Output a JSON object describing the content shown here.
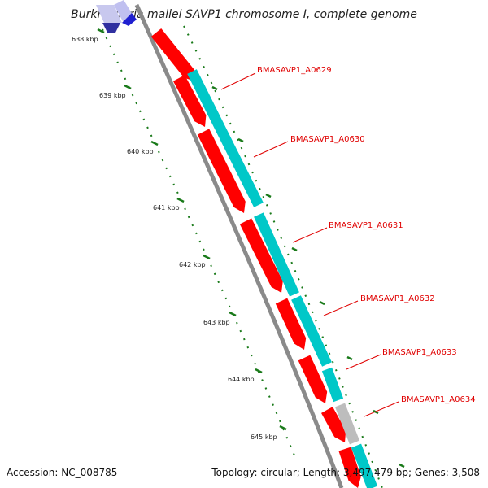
{
  "title": "Burkholderia mallei SAVP1 chromosome I, complete genome",
  "accession": "Accession: NC_008785",
  "summary": "Topology: circular; Length: 3,497,479 bp; Genes: 3,508",
  "scale_labels": [
    "638 kbp",
    "639 kbp",
    "640 kbp",
    "641 kbp",
    "642 kbp",
    "643 kbp",
    "644 kbp",
    "645 kbp"
  ],
  "gene_labels": [
    "BMASAVP1_A0629",
    "BMASAVP1_A0630",
    "BMASAVP1_A0631",
    "BMASAVP1_A0632",
    "BMASAVP1_A0633",
    "BMASAVP1_A0634"
  ],
  "colors": {
    "backbone": "#8a8a8a",
    "cds": "#ff0000",
    "gene": "#00c8c8",
    "grey_feature": "#bdbdbd",
    "tick": "#1a7a1a",
    "label": "#e00000"
  }
}
